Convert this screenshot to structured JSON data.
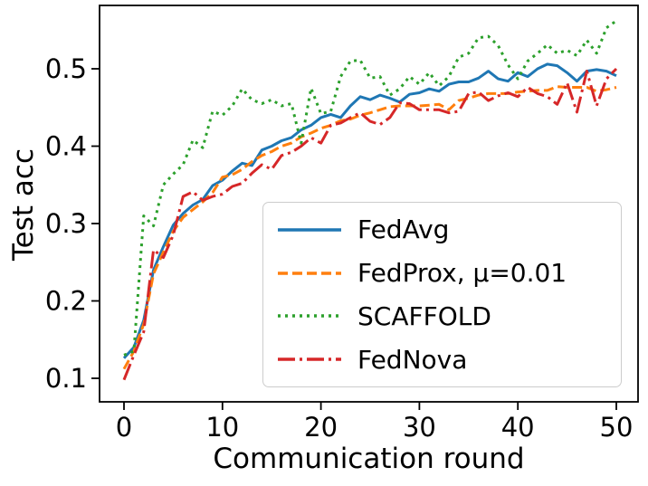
{
  "figure": {
    "background": "#ffffff",
    "spine_color": "#000000",
    "text_color": "#000000"
  },
  "axes": {
    "xlabel": "Communication round",
    "ylabel": "Test acc",
    "xticks": {
      "values": [
        0,
        10,
        20,
        30,
        40,
        50
      ],
      "labels": [
        "0",
        "10",
        "20",
        "30",
        "40",
        "50"
      ]
    },
    "yticks": {
      "values": [
        0.1,
        0.2,
        0.3,
        0.4,
        0.5
      ],
      "labels": [
        "0.1",
        "0.2",
        "0.3",
        "0.4",
        "0.5"
      ]
    }
  },
  "chart_data": {
    "type": "line",
    "title": "",
    "xlabel": "Communication round",
    "ylabel": "Test acc",
    "xlim": [
      -2.5,
      52.3
    ],
    "ylim": [
      0.069,
      0.583
    ],
    "grid": false,
    "legend_position": "lower right inside",
    "x": [
      0,
      1,
      2,
      3,
      4,
      5,
      6,
      7,
      8,
      9,
      10,
      11,
      12,
      13,
      14,
      15,
      16,
      17,
      18,
      19,
      20,
      21,
      22,
      23,
      24,
      25,
      26,
      27,
      28,
      29,
      30,
      31,
      32,
      33,
      34,
      35,
      36,
      37,
      38,
      39,
      40,
      41,
      42,
      43,
      44,
      45,
      46,
      47,
      48,
      49,
      50
    ],
    "series": [
      {
        "name": "FedAvg",
        "color": "#1f77b4",
        "line_style": "solid",
        "values": [
          0.126,
          0.14,
          0.175,
          0.24,
          0.27,
          0.298,
          0.313,
          0.324,
          0.331,
          0.349,
          0.356,
          0.368,
          0.378,
          0.375,
          0.395,
          0.4,
          0.407,
          0.411,
          0.421,
          0.427,
          0.437,
          0.441,
          0.437,
          0.452,
          0.464,
          0.46,
          0.466,
          0.462,
          0.457,
          0.467,
          0.469,
          0.474,
          0.471,
          0.48,
          0.483,
          0.483,
          0.488,
          0.497,
          0.487,
          0.484,
          0.495,
          0.49,
          0.5,
          0.506,
          0.504,
          0.495,
          0.484,
          0.497,
          0.499,
          0.497,
          0.491
        ]
      },
      {
        "name": "FedProx, μ=0.01",
        "color": "#ff7f0e",
        "line_style": "dashed",
        "values": [
          0.112,
          0.135,
          0.17,
          0.235,
          0.263,
          0.29,
          0.308,
          0.318,
          0.328,
          0.34,
          0.36,
          0.363,
          0.37,
          0.38,
          0.388,
          0.393,
          0.4,
          0.404,
          0.412,
          0.417,
          0.423,
          0.427,
          0.433,
          0.435,
          0.44,
          0.443,
          0.447,
          0.451,
          0.452,
          0.452,
          0.452,
          0.453,
          0.454,
          0.447,
          0.459,
          0.462,
          0.466,
          0.468,
          0.468,
          0.468,
          0.47,
          0.471,
          0.472,
          0.472,
          0.477,
          0.476,
          0.476,
          0.476,
          0.471,
          0.473,
          0.476
        ]
      },
      {
        "name": "SCAFFOLD",
        "color": "#2ca02c",
        "line_style": "dotted",
        "values": [
          0.13,
          0.135,
          0.31,
          0.297,
          0.35,
          0.364,
          0.376,
          0.408,
          0.398,
          0.445,
          0.44,
          0.452,
          0.474,
          0.46,
          0.455,
          0.46,
          0.452,
          0.455,
          0.404,
          0.475,
          0.442,
          0.445,
          0.49,
          0.51,
          0.511,
          0.488,
          0.49,
          0.466,
          0.474,
          0.49,
          0.48,
          0.495,
          0.478,
          0.49,
          0.515,
          0.52,
          0.54,
          0.542,
          0.53,
          0.505,
          0.487,
          0.51,
          0.52,
          0.531,
          0.52,
          0.524,
          0.517,
          0.537,
          0.52,
          0.553,
          0.562
        ]
      },
      {
        "name": "FedNova",
        "color": "#d62728",
        "line_style": "dashdot",
        "values": [
          0.098,
          0.13,
          0.16,
          0.266,
          0.256,
          0.285,
          0.335,
          0.341,
          0.33,
          0.335,
          0.338,
          0.348,
          0.352,
          0.365,
          0.376,
          0.37,
          0.388,
          0.392,
          0.4,
          0.411,
          0.404,
          0.427,
          0.43,
          0.437,
          0.443,
          0.432,
          0.428,
          0.437,
          0.456,
          0.455,
          0.447,
          0.447,
          0.447,
          0.443,
          0.445,
          0.468,
          0.47,
          0.459,
          0.465,
          0.469,
          0.464,
          0.476,
          0.468,
          0.464,
          0.454,
          0.482,
          0.444,
          0.497,
          0.452,
          0.487,
          0.5
        ]
      }
    ]
  }
}
